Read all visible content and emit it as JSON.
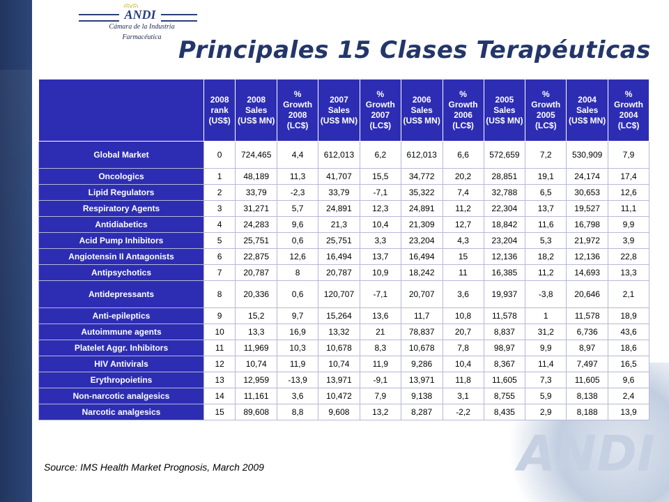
{
  "logo": {
    "name": "ANDI",
    "line1": "Cámara de la Industria",
    "line2": "Farmacéutica"
  },
  "title": "Principales 15 Clases Terapéuticas",
  "table": {
    "headers": [
      "2008 rank (US$)",
      "2008 Sales (US$ MN)",
      "% Growth 2008 (LC$)",
      "2007 Sales (US$ MN)",
      "% Growth 2007 (LC$)",
      "2006 Sales (US$ MN)",
      "% Growth 2006 (LC$)",
      "2005 Sales (US$ MN)",
      "% Growth 2005 (LC$)",
      "2004 Sales (US$ MN)",
      "% Growth 2004 (LC$)"
    ],
    "rows": [
      {
        "name": "Global Market",
        "cells": [
          "0",
          "724,465",
          "4,4",
          "612,013",
          "6,2",
          "612,013",
          "6,6",
          "572,659",
          "7,2",
          "530,909",
          "7,9"
        ]
      },
      {
        "name": "Oncologics",
        "cells": [
          "1",
          "48,189",
          "11,3",
          "41,707",
          "15,5",
          "34,772",
          "20,2",
          "28,851",
          "19,1",
          "24,174",
          "17,4"
        ]
      },
      {
        "name": "Lipid Regulators",
        "cells": [
          "2",
          "33,79",
          "-2,3",
          "33,79",
          "-7,1",
          "35,322",
          "7,4",
          "32,788",
          "6,5",
          "30,653",
          "12,6"
        ]
      },
      {
        "name": "Respiratory Agents",
        "cells": [
          "3",
          "31,271",
          "5,7",
          "24,891",
          "12,3",
          "24,891",
          "11,2",
          "22,304",
          "13,7",
          "19,527",
          "11,1"
        ]
      },
      {
        "name": "Antidiabetics",
        "cells": [
          "4",
          "24,283",
          "9,6",
          "21,3",
          "10,4",
          "21,309",
          "12,7",
          "18,842",
          "11,6",
          "16,798",
          "9,9"
        ]
      },
      {
        "name": "Acid Pump Inhibitors",
        "cells": [
          "5",
          "25,751",
          "0,6",
          "25,751",
          "3,3",
          "23,204",
          "4,3",
          "23,204",
          "5,3",
          "21,972",
          "3,9"
        ]
      },
      {
        "name": "Angiotensin II Antagonists",
        "cells": [
          "6",
          "22,875",
          "12,6",
          "16,494",
          "13,7",
          "16,494",
          "15",
          "12,136",
          "18,2",
          "12,136",
          "22,8"
        ]
      },
      {
        "name": "Antipsychotics",
        "cells": [
          "7",
          "20,787",
          "8",
          "20,787",
          "10,9",
          "18,242",
          "11",
          "16,385",
          "11,2",
          "14,693",
          "13,3"
        ]
      },
      {
        "name": "Antidepressants",
        "cells": [
          "8",
          "20,336",
          "0,6",
          "120,707",
          "-7,1",
          "20,707",
          "3,6",
          "19,937",
          "-3,8",
          "20,646",
          "2,1"
        ]
      },
      {
        "name": "Anti-epileptics",
        "cells": [
          "9",
          "15,2",
          "9,7",
          "15,264",
          "13,6",
          "11,7",
          "10,8",
          "11,578",
          "1",
          "11,578",
          "18,9"
        ]
      },
      {
        "name": "Autoimmune agents",
        "cells": [
          "10",
          "13,3",
          "16,9",
          "13,32",
          "21",
          "78,837",
          "20,7",
          "8,837",
          "31,2",
          "6,736",
          "43,6"
        ]
      },
      {
        "name": "Platelet Aggr. Inhibitors",
        "cells": [
          "11",
          "11,969",
          "10,3",
          "10,678",
          "8,3",
          "10,678",
          "7,8",
          "98,97",
          "9,9",
          "8,97",
          "18,6"
        ]
      },
      {
        "name": "HIV Antivirals",
        "cells": [
          "12",
          "10,74",
          "11,9",
          "10,74",
          "11,9",
          "9,286",
          "10,4",
          "8,367",
          "11,4",
          "7,497",
          "16,5"
        ]
      },
      {
        "name": "Erythropoietins",
        "cells": [
          "13",
          "12,959",
          "-13,9",
          "13,971",
          "-9,1",
          "13,971",
          "11,8",
          "11,605",
          "7,3",
          "11,605",
          "9,6"
        ]
      },
      {
        "name": "Non-narcotic analgesics",
        "cells": [
          "14",
          "11,161",
          "3,6",
          "10,472",
          "7,9",
          "9,138",
          "3,1",
          "8,755",
          "5,9",
          "8,138",
          "2,4"
        ]
      },
      {
        "name": "Narcotic analgesics",
        "cells": [
          "15",
          "89,608",
          "8,8",
          "9,608",
          "13,2",
          "8,287",
          "-2,2",
          "8,435",
          "2,9",
          "8,188",
          "13,9"
        ]
      }
    ]
  },
  "source": "Source: IMS Health Market Prognosis, March 2009"
}
